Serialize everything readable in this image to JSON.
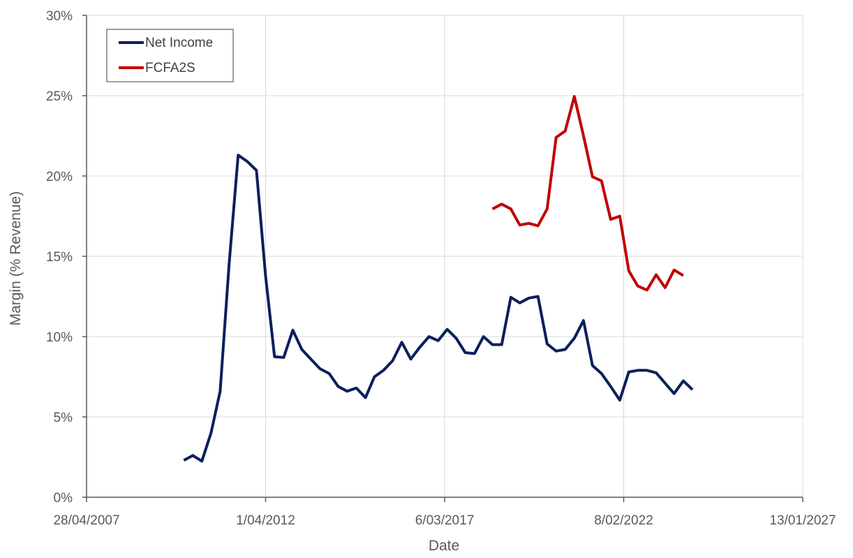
{
  "chart_data": {
    "type": "line",
    "title": "",
    "xlabel": "Date",
    "ylabel": "Margin (% Revenue)",
    "x_axis": {
      "type": "date",
      "range": [
        "2007-04-28",
        "2027-01-13"
      ],
      "ticks": [
        {
          "date": "2007-04-28",
          "label": "28/04/2007"
        },
        {
          "date": "2012-04-01",
          "label": "1/04/2012"
        },
        {
          "date": "2017-03-06",
          "label": "6/03/2017"
        },
        {
          "date": "2022-02-08",
          "label": "8/02/2022"
        },
        {
          "date": "2027-01-13",
          "label": "13/01/2027"
        }
      ]
    },
    "y_axis": {
      "range": [
        0,
        30
      ],
      "ticks": [
        0,
        5,
        10,
        15,
        20,
        25,
        30
      ],
      "tick_labels": [
        "0%",
        "5%",
        "10%",
        "15%",
        "20%",
        "25%",
        "30%"
      ]
    },
    "grid": true,
    "legend_position": "top-left",
    "series": [
      {
        "name": "Net Income",
        "color": "#0b1f5c",
        "points": [
          [
            "2009-12-31",
            2.3
          ],
          [
            "2010-03-31",
            2.6
          ],
          [
            "2010-06-30",
            2.25
          ],
          [
            "2010-09-30",
            4.0
          ],
          [
            "2010-12-31",
            6.6
          ],
          [
            "2011-03-31",
            14.5
          ],
          [
            "2011-06-30",
            21.3
          ],
          [
            "2011-09-30",
            20.9
          ],
          [
            "2011-12-31",
            20.35
          ],
          [
            "2012-03-31",
            13.8
          ],
          [
            "2012-06-30",
            8.75
          ],
          [
            "2012-09-30",
            8.7
          ],
          [
            "2012-12-31",
            10.4
          ],
          [
            "2013-03-31",
            9.2
          ],
          [
            "2013-06-30",
            8.6
          ],
          [
            "2013-09-30",
            8.0
          ],
          [
            "2013-12-31",
            7.7
          ],
          [
            "2014-03-31",
            6.9
          ],
          [
            "2014-06-30",
            6.6
          ],
          [
            "2014-09-30",
            6.8
          ],
          [
            "2014-12-31",
            6.2
          ],
          [
            "2015-03-31",
            7.5
          ],
          [
            "2015-06-30",
            7.9
          ],
          [
            "2015-09-30",
            8.5
          ],
          [
            "2015-12-31",
            9.65
          ],
          [
            "2016-03-31",
            8.6
          ],
          [
            "2016-06-30",
            9.35
          ],
          [
            "2016-09-30",
            10.0
          ],
          [
            "2016-12-31",
            9.75
          ],
          [
            "2017-03-31",
            10.45
          ],
          [
            "2017-06-30",
            9.9
          ],
          [
            "2017-09-30",
            9.0
          ],
          [
            "2017-12-31",
            8.95
          ],
          [
            "2018-03-31",
            10.0
          ],
          [
            "2018-06-30",
            9.5
          ],
          [
            "2018-09-30",
            9.5
          ],
          [
            "2018-12-31",
            12.45
          ],
          [
            "2019-03-31",
            12.1
          ],
          [
            "2019-06-30",
            12.4
          ],
          [
            "2019-09-30",
            12.5
          ],
          [
            "2019-12-31",
            9.55
          ],
          [
            "2020-03-31",
            9.1
          ],
          [
            "2020-06-30",
            9.2
          ],
          [
            "2020-09-30",
            9.9
          ],
          [
            "2020-12-31",
            11.0
          ],
          [
            "2021-03-31",
            8.2
          ],
          [
            "2021-06-30",
            7.7
          ],
          [
            "2021-09-30",
            6.9
          ],
          [
            "2021-12-31",
            6.05
          ],
          [
            "2022-03-31",
            7.8
          ],
          [
            "2022-06-30",
            7.9
          ],
          [
            "2022-09-30",
            7.9
          ],
          [
            "2022-12-31",
            7.75
          ],
          [
            "2023-03-31",
            7.1
          ],
          [
            "2023-06-30",
            6.45
          ],
          [
            "2023-09-30",
            7.25
          ],
          [
            "2023-12-31",
            6.7
          ]
        ]
      },
      {
        "name": "FCFA2S",
        "color": "#c00000",
        "points": [
          [
            "2018-06-30",
            17.95
          ],
          [
            "2018-09-30",
            18.25
          ],
          [
            "2018-12-31",
            17.95
          ],
          [
            "2019-03-31",
            16.95
          ],
          [
            "2019-06-30",
            17.05
          ],
          [
            "2019-09-30",
            16.9
          ],
          [
            "2019-12-31",
            17.95
          ],
          [
            "2020-03-31",
            22.4
          ],
          [
            "2020-06-30",
            22.8
          ],
          [
            "2020-09-30",
            24.95
          ],
          [
            "2020-12-31",
            22.5
          ],
          [
            "2021-03-31",
            19.95
          ],
          [
            "2021-06-30",
            19.7
          ],
          [
            "2021-09-30",
            17.3
          ],
          [
            "2021-12-31",
            17.5
          ],
          [
            "2022-03-31",
            14.1
          ],
          [
            "2022-06-30",
            13.15
          ],
          [
            "2022-09-30",
            12.9
          ],
          [
            "2022-12-31",
            13.85
          ],
          [
            "2023-03-31",
            13.05
          ],
          [
            "2023-06-30",
            14.15
          ],
          [
            "2023-09-30",
            13.8
          ]
        ]
      }
    ]
  }
}
